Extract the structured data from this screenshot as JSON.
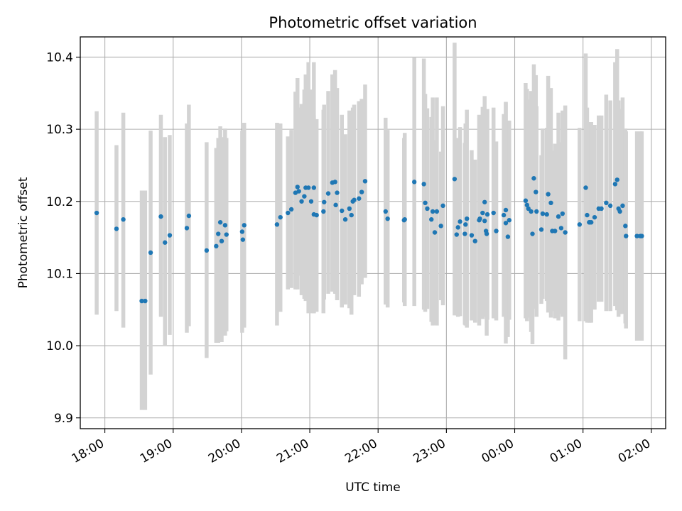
{
  "chart_data": {
    "type": "scatter",
    "title": "Photometric offset variation",
    "xlabel": "UTC time",
    "ylabel": "Photometric offset",
    "x_axis_kind": "time",
    "x_unit": "hours, where 24 = 00:00 of the following day",
    "xlim": [
      17.64,
      26.21
    ],
    "ylim": [
      9.885,
      10.428
    ],
    "x_ticks": [
      {
        "value": 18,
        "label": "18:00"
      },
      {
        "value": 19,
        "label": "19:00"
      },
      {
        "value": 20,
        "label": "20:00"
      },
      {
        "value": 21,
        "label": "21:00"
      },
      {
        "value": 22,
        "label": "22:00"
      },
      {
        "value": 23,
        "label": "23:00"
      },
      {
        "value": 24,
        "label": "00:00"
      },
      {
        "value": 25,
        "label": "01:00"
      },
      {
        "value": 26,
        "label": "02:00"
      }
    ],
    "y_ticks": [
      {
        "value": 9.9,
        "label": "9.9"
      },
      {
        "value": 10.0,
        "label": "10.0"
      },
      {
        "value": 10.1,
        "label": "10.1"
      },
      {
        "value": 10.2,
        "label": "10.2"
      },
      {
        "value": 10.3,
        "label": "10.3"
      },
      {
        "value": 10.4,
        "label": "10.4"
      }
    ],
    "grid": true,
    "legend": "none",
    "colors": {
      "point": "#1f77b4",
      "errorbar": "#d3d3d3",
      "grid": "#b0b0b0",
      "axes": "#000000"
    },
    "series": [
      {
        "x": [
          17.88,
          18.17,
          18.27,
          18.54,
          18.59,
          18.67,
          18.82,
          18.88,
          18.95,
          19.2,
          19.23,
          19.49,
          19.63,
          19.66,
          19.69,
          19.71,
          19.76,
          19.78,
          20.01,
          20.02,
          20.04,
          20.52,
          20.57,
          20.68,
          20.73,
          20.79,
          20.82,
          20.84,
          20.88,
          20.92,
          20.94,
          20.98,
          21.02,
          21.06,
          21.06,
          21.1,
          21.2,
          21.21,
          21.27,
          21.33,
          21.37,
          21.38,
          21.4,
          21.47,
          21.52,
          21.58,
          21.61,
          21.63,
          21.65,
          21.72,
          21.76,
          21.81,
          22.11,
          22.14,
          22.38,
          22.39,
          22.53,
          22.67,
          22.69,
          22.72,
          22.78,
          22.8,
          22.83,
          22.86,
          22.92,
          22.95,
          23.12,
          23.15,
          23.17,
          23.2,
          23.27,
          23.28,
          23.3,
          23.37,
          23.42,
          23.48,
          23.49,
          23.53,
          23.56,
          23.56,
          23.58,
          23.59,
          23.6,
          23.69,
          23.73,
          23.84,
          23.87,
          23.87,
          23.9,
          23.92,
          24.16,
          24.18,
          24.2,
          24.24,
          24.26,
          24.28,
          24.31,
          24.32,
          24.39,
          24.41,
          24.47,
          24.49,
          24.53,
          24.55,
          24.59,
          24.64,
          24.68,
          24.7,
          24.74,
          24.95,
          25.04,
          25.06,
          25.09,
          25.1,
          25.12,
          25.17,
          25.23,
          25.27,
          25.34,
          25.4,
          25.47,
          25.5,
          25.52,
          25.54,
          25.58,
          25.62,
          25.63,
          25.79,
          25.84,
          25.86
        ],
        "y": [
          10.184,
          10.162,
          10.175,
          10.062,
          10.062,
          10.129,
          10.179,
          10.143,
          10.153,
          10.163,
          10.18,
          10.132,
          10.138,
          10.155,
          10.171,
          10.145,
          10.167,
          10.154,
          10.158,
          10.147,
          10.167,
          10.168,
          10.178,
          10.184,
          10.189,
          10.212,
          10.22,
          10.214,
          10.2,
          10.207,
          10.219,
          10.219,
          10.2,
          10.182,
          10.219,
          10.181,
          10.186,
          10.199,
          10.211,
          10.226,
          10.227,
          10.195,
          10.212,
          10.187,
          10.175,
          10.19,
          10.181,
          10.2,
          10.202,
          10.204,
          10.213,
          10.228,
          10.186,
          10.176,
          10.174,
          10.175,
          10.227,
          10.224,
          10.198,
          10.19,
          10.175,
          10.186,
          10.157,
          10.186,
          10.166,
          10.194,
          10.231,
          10.154,
          10.164,
          10.172,
          10.155,
          10.168,
          10.176,
          10.153,
          10.145,
          10.174,
          10.176,
          10.184,
          10.199,
          10.173,
          10.159,
          10.155,
          10.182,
          10.184,
          10.159,
          10.181,
          10.188,
          10.17,
          10.151,
          10.174,
          10.201,
          10.195,
          10.19,
          10.186,
          10.155,
          10.232,
          10.213,
          10.186,
          10.161,
          10.183,
          10.182,
          10.21,
          10.198,
          10.159,
          10.159,
          10.179,
          10.163,
          10.183,
          10.157,
          10.168,
          10.219,
          10.181,
          10.171,
          10.171,
          10.171,
          10.178,
          10.19,
          10.19,
          10.198,
          10.194,
          10.224,
          10.23,
          10.19,
          10.186,
          10.194,
          10.166,
          10.152,
          10.152,
          10.152,
          10.152
        ],
        "y_low": [
          10.043,
          10.048,
          10.025,
          9.911,
          9.911,
          9.96,
          10.04,
          10.0,
          10.015,
          10.018,
          10.027,
          9.983,
          10.004,
          10.004,
          10.01,
          10.005,
          10.014,
          10.02,
          10.018,
          10.028,
          10.025,
          10.028,
          10.047,
          10.078,
          10.08,
          10.078,
          10.078,
          10.097,
          10.07,
          10.065,
          10.062,
          10.045,
          10.045,
          10.045,
          10.045,
          10.047,
          10.045,
          10.064,
          10.072,
          10.075,
          10.072,
          10.072,
          10.063,
          10.053,
          10.057,
          10.052,
          10.043,
          10.07,
          10.07,
          10.068,
          10.085,
          10.094,
          10.057,
          10.053,
          10.06,
          10.055,
          10.055,
          10.05,
          10.047,
          10.051,
          10.033,
          10.028,
          10.029,
          10.028,
          10.063,
          10.056,
          10.042,
          10.042,
          10.04,
          10.041,
          10.029,
          10.028,
          10.025,
          10.035,
          10.032,
          10.028,
          10.05,
          10.037,
          10.051,
          10.046,
          10.04,
          10.014,
          10.036,
          10.038,
          10.035,
          10.04,
          10.038,
          10.003,
          10.012,
          10.036,
          10.038,
          10.034,
          10.039,
          10.019,
          10.002,
          10.074,
          10.051,
          10.04,
          10.058,
          10.065,
          10.062,
          10.046,
          10.039,
          10.048,
          10.038,
          10.035,
          10.044,
          10.04,
          9.981,
          10.034,
          10.034,
          10.032,
          10.032,
          10.032,
          10.032,
          10.05,
          10.061,
          10.061,
          10.048,
          10.048,
          10.055,
          10.049,
          10.04,
          10.044,
          10.044,
          10.031,
          10.024,
          10.007,
          10.007,
          10.007
        ],
        "y_high": [
          10.325,
          10.278,
          10.323,
          10.215,
          10.215,
          10.298,
          10.32,
          10.289,
          10.292,
          10.308,
          10.334,
          10.282,
          10.274,
          10.288,
          10.304,
          10.289,
          10.301,
          10.288,
          10.298,
          10.266,
          10.309,
          10.309,
          10.308,
          10.29,
          10.299,
          10.352,
          10.371,
          10.33,
          10.335,
          10.355,
          10.376,
          10.393,
          10.355,
          10.319,
          10.393,
          10.314,
          10.327,
          10.334,
          10.353,
          10.376,
          10.382,
          10.318,
          10.357,
          10.32,
          10.293,
          10.326,
          10.319,
          10.33,
          10.334,
          10.339,
          10.342,
          10.362,
          10.316,
          10.299,
          10.288,
          10.295,
          10.4,
          10.398,
          10.349,
          10.329,
          10.317,
          10.344,
          10.285,
          10.344,
          10.269,
          10.332,
          10.42,
          10.266,
          10.288,
          10.303,
          10.281,
          10.308,
          10.327,
          10.271,
          10.258,
          10.32,
          10.302,
          10.331,
          10.346,
          10.3,
          10.278,
          10.296,
          10.328,
          10.33,
          10.283,
          10.321,
          10.338,
          10.337,
          10.29,
          10.312,
          10.364,
          10.356,
          10.341,
          10.353,
          10.308,
          10.39,
          10.375,
          10.332,
          10.264,
          10.301,
          10.302,
          10.374,
          10.357,
          10.27,
          10.28,
          10.323,
          10.282,
          10.326,
          10.333,
          10.302,
          10.405,
          10.33,
          10.31,
          10.31,
          10.31,
          10.306,
          10.319,
          10.319,
          10.348,
          10.34,
          10.393,
          10.411,
          10.34,
          10.328,
          10.344,
          10.301,
          10.297,
          10.297,
          10.297,
          10.297
        ]
      }
    ]
  }
}
